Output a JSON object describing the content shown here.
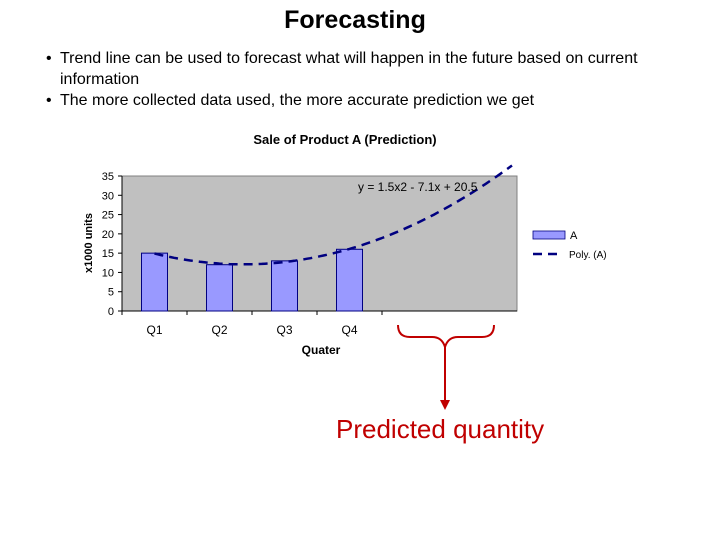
{
  "slide": {
    "title": "Forecasting",
    "bullets": [
      "Trend line can be used to forecast what will happen in the future based on current information",
      "The more collected data used, the more accurate prediction we get"
    ]
  },
  "chart_data": {
    "type": "bar",
    "title": "Sale of Product A (Prediction)",
    "xlabel": "Quater",
    "ylabel": "x1000 units",
    "ylim": [
      0,
      35
    ],
    "yticks": [
      0,
      5,
      10,
      15,
      20,
      25,
      30,
      35
    ],
    "categories": [
      "Q1",
      "Q2",
      "Q3",
      "Q4"
    ],
    "series": [
      {
        "name": "A",
        "values": [
          15,
          12,
          13,
          16
        ],
        "color": "#9999ff"
      }
    ],
    "trendline": {
      "name": "Poly. (A)",
      "type": "polynomial",
      "equation": "y = 1.5x2 - 7.1x + 20.5",
      "coefficients": [
        1.5,
        -7.1,
        20.5
      ],
      "forecast_periods": 3,
      "color": "#000080"
    },
    "legend_position": "right",
    "plot_background": "#c0c0c0",
    "grid": false
  },
  "annotation": {
    "label": "Predicted quantity",
    "color": "#c00000"
  }
}
